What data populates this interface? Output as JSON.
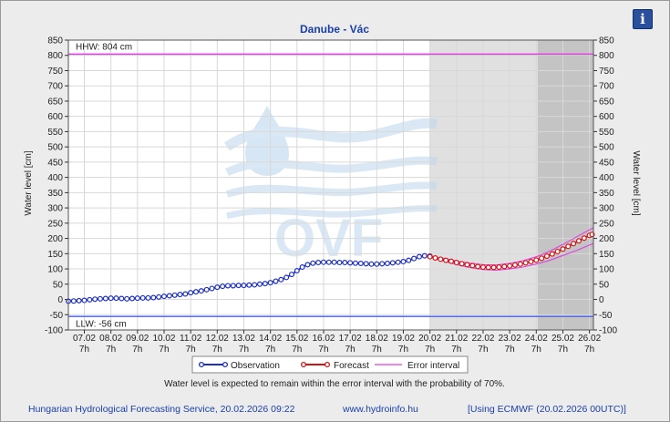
{
  "chart_data": {
    "type": "line",
    "title": "Danube - Vác",
    "ylabel_left": "Water level [cm]",
    "ylabel_right": "Water level [cm]",
    "ylim": [
      -100,
      850
    ],
    "yticks": [
      -100,
      -50,
      0,
      50,
      100,
      150,
      200,
      250,
      300,
      350,
      400,
      450,
      500,
      550,
      600,
      650,
      700,
      750,
      800,
      850
    ],
    "xlim": [
      6.4,
      26.15
    ],
    "x_ticks": [
      {
        "x": 7,
        "date": "07.02",
        "hour": "7h"
      },
      {
        "x": 8,
        "date": "08.02",
        "hour": "7h"
      },
      {
        "x": 9,
        "date": "09.02",
        "hour": "7h"
      },
      {
        "x": 10,
        "date": "10.02",
        "hour": "7h"
      },
      {
        "x": 11,
        "date": "11.02",
        "hour": "7h"
      },
      {
        "x": 12,
        "date": "12.02",
        "hour": "7h"
      },
      {
        "x": 13,
        "date": "13.02",
        "hour": "7h"
      },
      {
        "x": 14,
        "date": "14.02",
        "hour": "7h"
      },
      {
        "x": 15,
        "date": "15.02",
        "hour": "7h"
      },
      {
        "x": 16,
        "date": "16.02",
        "hour": "7h"
      },
      {
        "x": 17,
        "date": "17.02",
        "hour": "7h"
      },
      {
        "x": 18,
        "date": "18.02",
        "hour": "7h"
      },
      {
        "x": 19,
        "date": "19.02",
        "hour": "7h"
      },
      {
        "x": 20,
        "date": "20.02",
        "hour": "7h"
      },
      {
        "x": 21,
        "date": "21.02",
        "hour": "7h"
      },
      {
        "x": 22,
        "date": "22.02",
        "hour": "7h"
      },
      {
        "x": 23,
        "date": "23.02",
        "hour": "7h"
      },
      {
        "x": 24,
        "date": "24.02",
        "hour": "7h"
      },
      {
        "x": 25,
        "date": "25.02",
        "hour": "7h"
      },
      {
        "x": 26,
        "date": "26.02",
        "hour": "7h"
      }
    ],
    "reference_lines": [
      {
        "label": "HHW: 804 cm",
        "value": 804,
        "color": "#e040e0"
      },
      {
        "label": "LLW: -56 cm",
        "value": -56,
        "color": "#5a6cf0"
      }
    ],
    "shaded_regions": [
      {
        "from": 20,
        "to": 24.05,
        "color": "#e0e0e0"
      },
      {
        "from": 24.05,
        "to": 26.15,
        "color": "#c4c4c4"
      }
    ],
    "series": [
      {
        "name": "Observation",
        "color": "#1c2fc4",
        "points": [
          [
            6.4,
            -6
          ],
          [
            6.6,
            -5
          ],
          [
            6.8,
            -4
          ],
          [
            7.0,
            -3
          ],
          [
            7.2,
            -1
          ],
          [
            7.4,
            1
          ],
          [
            7.6,
            2
          ],
          [
            7.8,
            3
          ],
          [
            8.0,
            4
          ],
          [
            8.2,
            4
          ],
          [
            8.4,
            3
          ],
          [
            8.6,
            2
          ],
          [
            8.8,
            3
          ],
          [
            9.0,
            4
          ],
          [
            9.2,
            5
          ],
          [
            9.4,
            5
          ],
          [
            9.6,
            6
          ],
          [
            9.8,
            8
          ],
          [
            10.0,
            10
          ],
          [
            10.2,
            12
          ],
          [
            10.4,
            14
          ],
          [
            10.6,
            16
          ],
          [
            10.8,
            18
          ],
          [
            11.0,
            22
          ],
          [
            11.2,
            25
          ],
          [
            11.4,
            28
          ],
          [
            11.6,
            32
          ],
          [
            11.8,
            36
          ],
          [
            12.0,
            40
          ],
          [
            12.2,
            43
          ],
          [
            12.4,
            45
          ],
          [
            12.6,
            45
          ],
          [
            12.8,
            46
          ],
          [
            13.0,
            46
          ],
          [
            13.2,
            47
          ],
          [
            13.4,
            48
          ],
          [
            13.6,
            50
          ],
          [
            13.8,
            52
          ],
          [
            14.0,
            55
          ],
          [
            14.2,
            60
          ],
          [
            14.4,
            65
          ],
          [
            14.6,
            72
          ],
          [
            14.8,
            82
          ],
          [
            15.0,
            94
          ],
          [
            15.2,
            106
          ],
          [
            15.4,
            114
          ],
          [
            15.6,
            119
          ],
          [
            15.8,
            121
          ],
          [
            16.0,
            122
          ],
          [
            16.2,
            122
          ],
          [
            16.4,
            122
          ],
          [
            16.6,
            121
          ],
          [
            16.8,
            121
          ],
          [
            17.0,
            120
          ],
          [
            17.2,
            119
          ],
          [
            17.4,
            118
          ],
          [
            17.6,
            117
          ],
          [
            17.8,
            116
          ],
          [
            18.0,
            116
          ],
          [
            18.2,
            117
          ],
          [
            18.4,
            118
          ],
          [
            18.6,
            120
          ],
          [
            18.8,
            122
          ],
          [
            19.0,
            124
          ],
          [
            19.2,
            128
          ],
          [
            19.4,
            134
          ],
          [
            19.6,
            140
          ],
          [
            19.8,
            143
          ],
          [
            20.0,
            142
          ]
        ]
      },
      {
        "name": "Forecast",
        "color": "#d41414",
        "points": [
          [
            20.0,
            140
          ],
          [
            20.2,
            136
          ],
          [
            20.4,
            132
          ],
          [
            20.6,
            128
          ],
          [
            20.8,
            125
          ],
          [
            21.0,
            121
          ],
          [
            21.2,
            117
          ],
          [
            21.4,
            114
          ],
          [
            21.6,
            111
          ],
          [
            21.8,
            108
          ],
          [
            22.0,
            106
          ],
          [
            22.2,
            105
          ],
          [
            22.4,
            105
          ],
          [
            22.6,
            106
          ],
          [
            22.8,
            108
          ],
          [
            23.0,
            110
          ],
          [
            23.2,
            113
          ],
          [
            23.4,
            116
          ],
          [
            23.6,
            120
          ],
          [
            23.8,
            124
          ],
          [
            24.0,
            129
          ],
          [
            24.2,
            135
          ],
          [
            24.4,
            142
          ],
          [
            24.6,
            149
          ],
          [
            24.8,
            157
          ],
          [
            25.0,
            165
          ],
          [
            25.2,
            174
          ],
          [
            25.4,
            183
          ],
          [
            25.6,
            192
          ],
          [
            25.8,
            201
          ],
          [
            26.0,
            210
          ],
          [
            26.1,
            213
          ]
        ]
      },
      {
        "name": "Error interval",
        "color": "#e040e0",
        "upper": [
          [
            20.0,
            142
          ],
          [
            20.5,
            135
          ],
          [
            21.0,
            126
          ],
          [
            21.5,
            119
          ],
          [
            22.0,
            114
          ],
          [
            22.5,
            113
          ],
          [
            23.0,
            118
          ],
          [
            23.5,
            127
          ],
          [
            24.0,
            140
          ],
          [
            24.5,
            158
          ],
          [
            25.0,
            180
          ],
          [
            25.5,
            204
          ],
          [
            26.0,
            228
          ],
          [
            26.15,
            235
          ]
        ],
        "lower": [
          [
            20.0,
            138
          ],
          [
            20.5,
            126
          ],
          [
            21.0,
            114
          ],
          [
            21.5,
            105
          ],
          [
            22.0,
            98
          ],
          [
            22.5,
            96
          ],
          [
            23.0,
            100
          ],
          [
            23.5,
            106
          ],
          [
            24.0,
            116
          ],
          [
            24.5,
            128
          ],
          [
            25.0,
            144
          ],
          [
            25.5,
            160
          ],
          [
            26.0,
            178
          ],
          [
            26.15,
            183
          ]
        ]
      }
    ],
    "legend": {
      "placement": "bottom",
      "entries": [
        "Observation",
        "Forecast",
        "Error interval"
      ]
    },
    "note": "Water level is expected to remain within the error interval with the probability of 70%."
  },
  "footer": {
    "left": "Hungarian Hydrological Forecasting Service, 20.02.2026 09:22",
    "center": "www.hydroinfo.hu",
    "right": "[Using ECMWF (20.02.2026  00UTC)]"
  },
  "info_button": {
    "label": "i",
    "icon": "info-icon"
  }
}
